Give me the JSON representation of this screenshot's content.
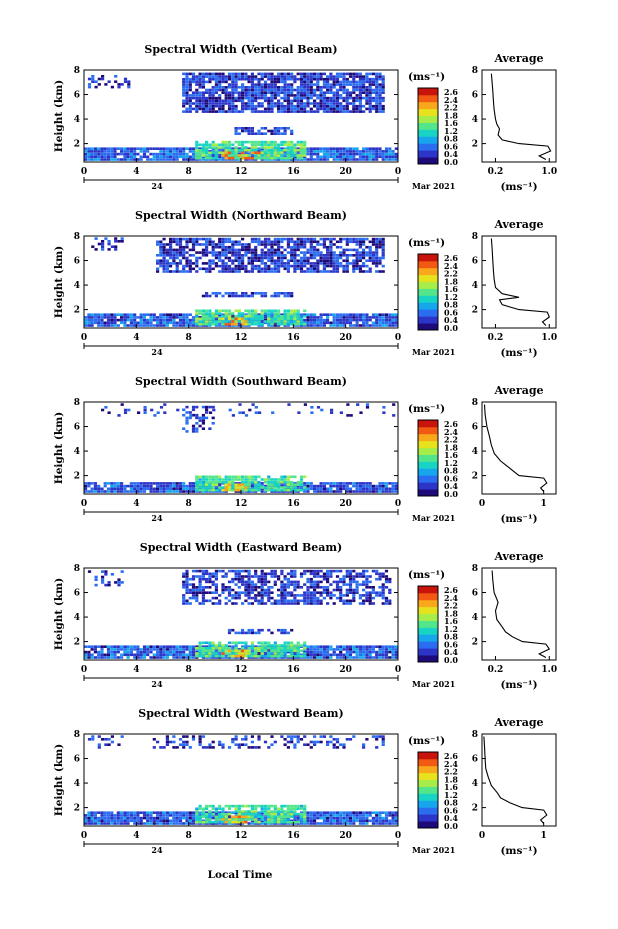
{
  "figure": {
    "xlabel": "Local Time"
  },
  "colorbar": {
    "unit_label": "(ms⁻¹)",
    "ticks": [
      "2.6",
      "2.4",
      "2.2",
      "1.8",
      "1.6",
      "1.2",
      "0.8",
      "0.6",
      "0.4",
      "0.0"
    ],
    "colors": [
      "#1e0a78",
      "#2b35c8",
      "#2a6df0",
      "#16a6ec",
      "#18d4c4",
      "#53e58b",
      "#a6ed49",
      "#e6e21e",
      "#f8a81a",
      "#f25a14",
      "#c9140c"
    ]
  },
  "chart_data": [
    {
      "type": "heatmap",
      "title": "Spectral Width (Vertical Beam)",
      "ylabel": "Height (km)",
      "y_ticks": [
        "8",
        "6",
        "4",
        "2"
      ],
      "x_ticks": [
        "0",
        "4",
        "8",
        "12",
        "16",
        "20",
        "0"
      ],
      "date_mid": "24",
      "date_label": "Mar 2021",
      "xlim": [
        0,
        24
      ],
      "ylim": [
        0.5,
        8
      ],
      "layers": [
        {
          "x0": 0,
          "x1": 24,
          "y0": 0.6,
          "y1": 1.6,
          "level": 0.5,
          "density": 0.92
        },
        {
          "x0": 8.5,
          "x1": 17,
          "y0": 0.7,
          "y1": 2.1,
          "level": 1.4,
          "density": 0.85
        },
        {
          "x0": 10.5,
          "x1": 13.5,
          "y0": 0.7,
          "y1": 1.3,
          "level": 2.3,
          "density": 0.6
        },
        {
          "x0": 7.5,
          "x1": 23,
          "y0": 4.5,
          "y1": 7.7,
          "level": 0.3,
          "density": 0.85
        },
        {
          "x0": 0.3,
          "x1": 3.5,
          "y0": 6.5,
          "y1": 7.5,
          "level": 0.3,
          "density": 0.35
        },
        {
          "x0": 11.5,
          "x1": 16,
          "y0": 2.7,
          "y1": 3.2,
          "level": 0.35,
          "density": 0.75
        }
      ],
      "average": {
        "title": "Average",
        "xlabel": "(ms⁻¹)",
        "x_ticks": [
          "0.2",
          "1.0"
        ],
        "xlim": [
          0,
          1.1
        ],
        "y_ticks": [
          "8",
          "6",
          "4",
          "2"
        ],
        "ylim": [
          0.5,
          8
        ],
        "profile": [
          [
            0.7,
            0.95
          ],
          [
            1.0,
            0.85
          ],
          [
            1.4,
            1.02
          ],
          [
            1.8,
            0.98
          ],
          [
            2.0,
            0.55
          ],
          [
            2.3,
            0.3
          ],
          [
            2.7,
            0.24
          ],
          [
            3.2,
            0.26
          ],
          [
            3.6,
            0.22
          ],
          [
            4.0,
            0.2
          ],
          [
            4.8,
            0.18
          ],
          [
            5.5,
            0.17
          ],
          [
            6.3,
            0.16
          ],
          [
            7.0,
            0.15
          ],
          [
            7.7,
            0.14
          ]
        ]
      }
    },
    {
      "type": "heatmap",
      "title": "Spectral Width (Northward Beam)",
      "ylabel": "Height (km)",
      "y_ticks": [
        "8",
        "6",
        "4",
        "2"
      ],
      "x_ticks": [
        "0",
        "4",
        "8",
        "12",
        "16",
        "20",
        "0"
      ],
      "date_mid": "24",
      "date_label": "Mar 2021",
      "xlim": [
        0,
        24
      ],
      "ylim": [
        0.5,
        8
      ],
      "layers": [
        {
          "x0": 0,
          "x1": 24,
          "y0": 0.6,
          "y1": 1.6,
          "level": 0.45,
          "density": 0.92
        },
        {
          "x0": 8.5,
          "x1": 17,
          "y0": 0.7,
          "y1": 2.0,
          "level": 1.3,
          "density": 0.82
        },
        {
          "x0": 10.5,
          "x1": 12.5,
          "y0": 0.7,
          "y1": 1.2,
          "level": 2.2,
          "density": 0.6
        },
        {
          "x0": 5.5,
          "x1": 23,
          "y0": 5.0,
          "y1": 7.8,
          "level": 0.3,
          "density": 0.75
        },
        {
          "x0": 0.3,
          "x1": 3,
          "y0": 6.8,
          "y1": 7.8,
          "level": 0.3,
          "density": 0.3
        },
        {
          "x0": 9,
          "x1": 16,
          "y0": 3.0,
          "y1": 3.3,
          "level": 0.35,
          "density": 0.7
        }
      ],
      "average": {
        "title": "Average",
        "xlabel": "(ms⁻¹)",
        "x_ticks": [
          "0.2",
          "1.0"
        ],
        "xlim": [
          0,
          1.1
        ],
        "y_ticks": [
          "8",
          "6",
          "4",
          "2"
        ],
        "ylim": [
          0.5,
          8
        ],
        "profile": [
          [
            0.7,
            0.95
          ],
          [
            1.0,
            0.9
          ],
          [
            1.4,
            1.0
          ],
          [
            1.8,
            0.97
          ],
          [
            2.0,
            0.55
          ],
          [
            2.4,
            0.3
          ],
          [
            2.8,
            0.26
          ],
          [
            3.0,
            0.55
          ],
          [
            3.3,
            0.3
          ],
          [
            3.8,
            0.2
          ],
          [
            4.5,
            0.18
          ],
          [
            5.2,
            0.17
          ],
          [
            6.0,
            0.16
          ],
          [
            7.0,
            0.15
          ],
          [
            7.8,
            0.14
          ]
        ]
      }
    },
    {
      "type": "heatmap",
      "title": "Spectral Width (Southward Beam)",
      "ylabel": "Height (km)",
      "y_ticks": [
        "8",
        "6",
        "4",
        "2"
      ],
      "x_ticks": [
        "0",
        "4",
        "8",
        "12",
        "16",
        "20",
        "0"
      ],
      "date_mid": "24",
      "date_label": "Mar 2021",
      "xlim": [
        0,
        24
      ],
      "ylim": [
        0.5,
        8
      ],
      "layers": [
        {
          "x0": 0,
          "x1": 24,
          "y0": 0.6,
          "y1": 1.3,
          "level": 0.45,
          "density": 0.9
        },
        {
          "x0": 8.5,
          "x1": 17,
          "y0": 0.7,
          "y1": 2.0,
          "level": 1.3,
          "density": 0.82
        },
        {
          "x0": 10.5,
          "x1": 12.5,
          "y0": 0.7,
          "y1": 1.2,
          "level": 2.2,
          "density": 0.6
        },
        {
          "x0": 7.5,
          "x1": 10,
          "y0": 5.5,
          "y1": 7.6,
          "level": 0.3,
          "density": 0.45
        },
        {
          "x0": 0.3,
          "x1": 24,
          "y0": 6.8,
          "y1": 7.8,
          "level": 0.3,
          "density": 0.12
        }
      ],
      "average": {
        "title": "Average",
        "xlabel": "(ms⁻¹)",
        "x_ticks": [
          "0",
          "1"
        ],
        "xlim": [
          0,
          1.2
        ],
        "y_ticks": [
          "8",
          "6",
          "4",
          "2"
        ],
        "ylim": [
          0.5,
          8
        ],
        "profile": [
          [
            0.7,
            1.0
          ],
          [
            1.0,
            0.95
          ],
          [
            1.4,
            1.05
          ],
          [
            1.8,
            1.0
          ],
          [
            2.0,
            0.6
          ],
          [
            2.4,
            0.5
          ],
          [
            2.8,
            0.4
          ],
          [
            3.2,
            0.3
          ],
          [
            3.8,
            0.2
          ],
          [
            4.5,
            0.15
          ],
          [
            5.2,
            0.12
          ],
          [
            6.0,
            0.08
          ],
          [
            7.0,
            0.05
          ],
          [
            7.8,
            0.04
          ]
        ]
      }
    },
    {
      "type": "heatmap",
      "title": "Spectral Width (Eastward Beam)",
      "ylabel": "Height (km)",
      "y_ticks": [
        "8",
        "6",
        "4",
        "2"
      ],
      "x_ticks": [
        "0",
        "4",
        "8",
        "12",
        "16",
        "20",
        "0"
      ],
      "date_mid": "24",
      "date_label": "Mar 2021",
      "xlim": [
        0,
        24
      ],
      "ylim": [
        0.5,
        8
      ],
      "layers": [
        {
          "x0": 0,
          "x1": 24,
          "y0": 0.6,
          "y1": 1.6,
          "level": 0.45,
          "density": 0.92
        },
        {
          "x0": 8.5,
          "x1": 17,
          "y0": 0.7,
          "y1": 2.0,
          "level": 1.3,
          "density": 0.82
        },
        {
          "x0": 10.5,
          "x1": 12.5,
          "y0": 0.7,
          "y1": 1.2,
          "level": 2.2,
          "density": 0.6
        },
        {
          "x0": 7.5,
          "x1": 23.5,
          "y0": 5.0,
          "y1": 7.8,
          "level": 0.3,
          "density": 0.6
        },
        {
          "x0": 0.3,
          "x1": 3,
          "y0": 6.5,
          "y1": 7.8,
          "level": 0.3,
          "density": 0.3
        },
        {
          "x0": 11,
          "x1": 16,
          "y0": 2.6,
          "y1": 3.0,
          "level": 0.35,
          "density": 0.7
        }
      ],
      "average": {
        "title": "Average",
        "xlabel": "(ms⁻¹)",
        "x_ticks": [
          "0.2",
          "1.0"
        ],
        "xlim": [
          0,
          1.1
        ],
        "y_ticks": [
          "8",
          "6",
          "4",
          "2"
        ],
        "ylim": [
          0.5,
          8
        ],
        "profile": [
          [
            0.7,
            0.95
          ],
          [
            1.0,
            0.85
          ],
          [
            1.4,
            1.0
          ],
          [
            1.8,
            0.95
          ],
          [
            2.0,
            0.6
          ],
          [
            2.4,
            0.45
          ],
          [
            2.8,
            0.35
          ],
          [
            3.2,
            0.3
          ],
          [
            3.8,
            0.22
          ],
          [
            4.5,
            0.2
          ],
          [
            5.2,
            0.24
          ],
          [
            6.0,
            0.18
          ],
          [
            7.0,
            0.16
          ],
          [
            7.8,
            0.15
          ]
        ]
      }
    },
    {
      "type": "heatmap",
      "title": "Spectral Width (Westward Beam)",
      "ylabel": "Height (km)",
      "y_ticks": [
        "8",
        "6",
        "4",
        "2"
      ],
      "x_ticks": [
        "0",
        "4",
        "8",
        "12",
        "16",
        "20",
        "0"
      ],
      "date_mid": "24",
      "date_label": "Mar 2021",
      "xlim": [
        0,
        24
      ],
      "ylim": [
        0.5,
        8
      ],
      "layers": [
        {
          "x0": 0,
          "x1": 24,
          "y0": 0.6,
          "y1": 1.6,
          "level": 0.45,
          "density": 0.92
        },
        {
          "x0": 8.5,
          "x1": 17,
          "y0": 0.7,
          "y1": 2.2,
          "level": 1.3,
          "density": 0.82
        },
        {
          "x0": 10.5,
          "x1": 12.5,
          "y0": 0.7,
          "y1": 1.3,
          "level": 2.2,
          "density": 0.6
        },
        {
          "x0": 5,
          "x1": 23,
          "y0": 6.8,
          "y1": 7.8,
          "level": 0.3,
          "density": 0.35
        },
        {
          "x0": 0.3,
          "x1": 3,
          "y0": 6.8,
          "y1": 7.8,
          "level": 0.3,
          "density": 0.25
        }
      ],
      "average": {
        "title": "Average",
        "xlabel": "(ms⁻¹)",
        "x_ticks": [
          "0",
          "1"
        ],
        "xlim": [
          0,
          1.2
        ],
        "y_ticks": [
          "8",
          "6",
          "4",
          "2"
        ],
        "ylim": [
          0.5,
          8
        ],
        "profile": [
          [
            0.7,
            1.0
          ],
          [
            1.0,
            0.95
          ],
          [
            1.4,
            1.05
          ],
          [
            1.8,
            1.0
          ],
          [
            2.0,
            0.65
          ],
          [
            2.4,
            0.45
          ],
          [
            2.8,
            0.3
          ],
          [
            3.2,
            0.25
          ],
          [
            3.8,
            0.15
          ],
          [
            4.5,
            0.1
          ],
          [
            5.2,
            0.06
          ],
          [
            6.0,
            0.05
          ],
          [
            7.0,
            0.04
          ],
          [
            7.8,
            0.03
          ]
        ]
      }
    }
  ]
}
